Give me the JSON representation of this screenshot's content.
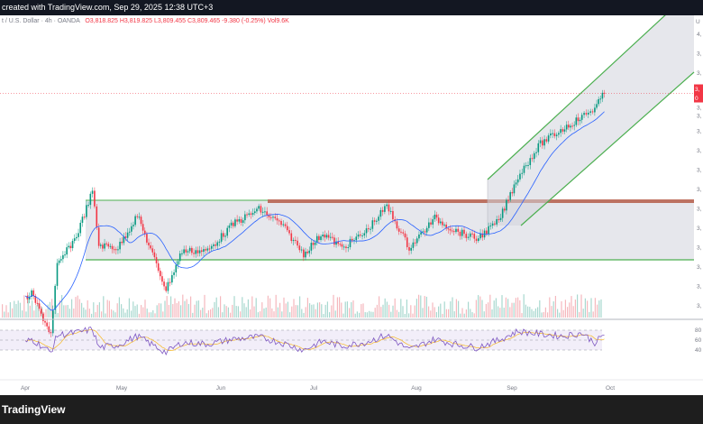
{
  "header": {
    "caption": "created with TradingView.com, Sep 29, 2025 12:38 UTC+3"
  },
  "legend": {
    "symbol": "t / U.S. Dollar · 4h · OANDA",
    "ohlc": "O3,818.825  H3,819.825  L3,809.455  C3,809.465  -9.380 (-0.25%)  Vol9.6K"
  },
  "price_axis": {
    "top_label": "U",
    "tick_prefixes": [
      "4,",
      "3,",
      "3,",
      "3,",
      "3,",
      "3,",
      "3,",
      "3,",
      "3,",
      "3,",
      "3,",
      "3,",
      "3,",
      "3,",
      "3,"
    ],
    "last_price_tag": "3,",
    "last_price_sub": "0"
  },
  "rsi_axis": {
    "ticks": [
      "80",
      "60",
      "40"
    ]
  },
  "footer": {
    "brand": "TradingView"
  },
  "colors": {
    "up": "#089981",
    "down": "#f23645",
    "ma": "#2962ff",
    "rsi": "#7e57c2",
    "rsi_ma": "#f7b924",
    "range_box": "#4caf50",
    "resistance": "#b2543f"
  },
  "chart_data": {
    "type": "line",
    "title": "",
    "x_ticks": [
      "Apr",
      "May",
      "Jun",
      "Jul",
      "Aug",
      "Sep",
      "Oct"
    ],
    "price": {
      "dates": [
        "04-01",
        "04-03",
        "04-09",
        "04-11",
        "04-17",
        "04-22",
        "04-24",
        "04-30",
        "05-06",
        "05-15",
        "05-20",
        "05-28",
        "06-05",
        "06-13",
        "06-20",
        "06-27",
        "07-03",
        "07-09",
        "07-16",
        "07-23",
        "07-30",
        "08-07",
        "08-13",
        "08-20",
        "08-27",
        "09-02",
        "09-09",
        "09-16",
        "09-22",
        "09-26",
        "09-29"
      ],
      "close": [
        3120,
        3135,
        3000,
        3230,
        3330,
        3480,
        3300,
        3290,
        3400,
        3150,
        3280,
        3280,
        3370,
        3420,
        3370,
        3270,
        3340,
        3290,
        3340,
        3430,
        3290,
        3390,
        3350,
        3320,
        3380,
        3530,
        3640,
        3690,
        3730,
        3760,
        3809
      ]
    },
    "range_box": {
      "top": 3450,
      "bottom": 3250,
      "from": "04-17",
      "to": "09-29"
    },
    "channel": {
      "from": "08-27",
      "to": "09-29",
      "lower_start": 3300,
      "upper_start": 3450
    },
    "rsi": {
      "levels": [
        80,
        60,
        40
      ],
      "values": [
        55,
        62,
        35,
        70,
        75,
        82,
        45,
        50,
        68,
        35,
        55,
        52,
        62,
        66,
        55,
        40,
        58,
        48,
        55,
        70,
        40,
        62,
        52,
        45,
        60,
        78,
        72,
        68,
        74,
        55,
        70
      ]
    }
  }
}
